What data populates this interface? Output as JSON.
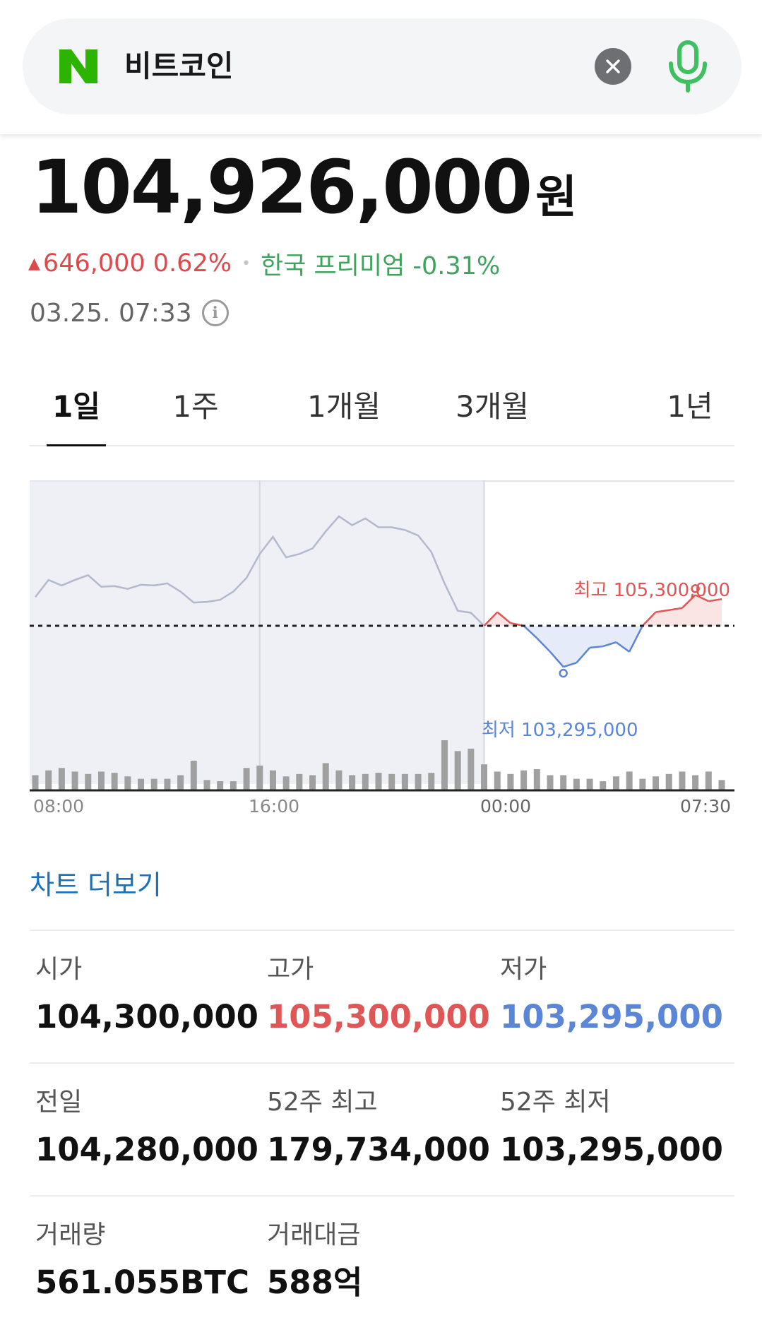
{
  "search": {
    "logo_letter": "N",
    "query": "비트코인",
    "clear_symbol": "×",
    "colors": {
      "brand": "#2db400",
      "mic": "#3fc060",
      "clear_bg": "#6e6f73"
    }
  },
  "quote": {
    "price": "104,926,000",
    "unit": "원",
    "change_arrow": "▲",
    "change": "646,000 0.62%",
    "separator": "•",
    "premium": "한국 프리미엄 -0.31%",
    "timestamp": "03.25. 07:33",
    "info_symbol": "i"
  },
  "tabs": [
    {
      "label": "1일",
      "active": true
    },
    {
      "label": "1주",
      "active": false
    },
    {
      "label": "1개월",
      "active": false
    },
    {
      "label": "3개월",
      "active": false
    },
    {
      "label": "1년",
      "active": false
    }
  ],
  "chart_data": {
    "type": "line",
    "x_labels": [
      "08:00",
      "16:00",
      "00:00",
      "07:30"
    ],
    "baseline": 104280000,
    "ylim": [
      103000000,
      106200000
    ],
    "series": [
      {
        "values": [
          104700000,
          104950000,
          104870000,
          104950000,
          105020000,
          104850000,
          104860000,
          104820000,
          104880000,
          104870000,
          104900000,
          104780000,
          104620000,
          104630000,
          104660000,
          104780000,
          104980000,
          105330000,
          105580000,
          105280000,
          105330000,
          105410000,
          105660000,
          105880000,
          105750000,
          105850000,
          105720000,
          105720000,
          105680000,
          105600000,
          105360000,
          104900000,
          104500000,
          104470000,
          104280000,
          104480000,
          104320000,
          104280000,
          104100000,
          103900000,
          103680000,
          103740000,
          103960000,
          103980000,
          104040000,
          103900000,
          104280000,
          104480000,
          104510000,
          104540000,
          104730000,
          104640000,
          104670000
        ]
      }
    ],
    "annotations": {
      "high": "최고 105,300,000",
      "low": "최저 103,295,000"
    },
    "volume": [
      12,
      16,
      18,
      15,
      13,
      15,
      14,
      11,
      9,
      9,
      9,
      12,
      24,
      8,
      7,
      7,
      18,
      20,
      16,
      11,
      13,
      12,
      22,
      16,
      12,
      13,
      14,
      13,
      13,
      13,
      14,
      41,
      32,
      34,
      21,
      15,
      13,
      16,
      17,
      12,
      12,
      9,
      9,
      7,
      11,
      15,
      9,
      11,
      13,
      15,
      12,
      15,
      8
    ],
    "colors": {
      "past_line": "#b3b8cc",
      "up": "#e05555",
      "down": "#5b85d6",
      "volume": "#a0a0a0",
      "shade": "#eef0f6"
    }
  },
  "more_chart": "차트 더보기",
  "stats": [
    [
      {
        "label": "시가",
        "value": "104,300,000",
        "tone": ""
      },
      {
        "label": "고가",
        "value": "105,300,000",
        "tone": "red"
      },
      {
        "label": "저가",
        "value": "103,295,000",
        "tone": "blue"
      }
    ],
    [
      {
        "label": "전일",
        "value": "104,280,000",
        "tone": ""
      },
      {
        "label": "52주 최고",
        "value": "179,734,000",
        "tone": ""
      },
      {
        "label": "52주 최저",
        "value": "103,295,000",
        "tone": ""
      }
    ],
    [
      {
        "label": "거래량",
        "value": "561.055BTC",
        "tone": ""
      },
      {
        "label": "거래대금",
        "value": "588억",
        "tone": ""
      }
    ]
  ]
}
